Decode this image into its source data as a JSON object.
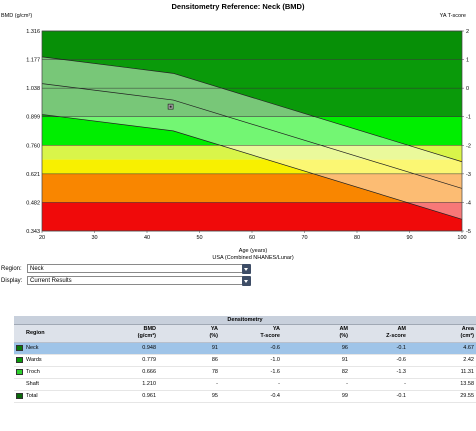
{
  "chart_data": {
    "type": "area",
    "title": "Densitometry Reference: Neck (BMD)",
    "ylabel": "BMD (g/cm²)",
    "ylabel_right": "YA T-score",
    "xlabel": "Age (years)",
    "xlabel_sub": "USA (Combined NHANES/Lunar)",
    "x_ticks": [
      "20",
      "30",
      "40",
      "50",
      "60",
      "70",
      "80",
      "90",
      "100"
    ],
    "y_ticks": [
      "1.316",
      "1.177",
      "1.038",
      "0.899",
      "0.760",
      "0.621",
      "0.482",
      "0.343"
    ],
    "t_ticks": [
      "2",
      "1",
      "0",
      "-1",
      "-2",
      "-3",
      "-4",
      "-5"
    ],
    "xlim": [
      20,
      100
    ],
    "ylim": [
      0.343,
      1.316
    ],
    "tlim": [
      -5,
      2
    ],
    "bands": [
      {
        "from_t": 1,
        "to_t": 2,
        "color": "#078f07"
      },
      {
        "from_t": -1,
        "to_t": 1,
        "color": "#0a9a0a"
      },
      {
        "from_t": -2,
        "to_t": -1,
        "color": "#00ee00"
      },
      {
        "from_t": -2.5,
        "to_t": -2,
        "color": "#d9f54a"
      },
      {
        "from_t": -3,
        "to_t": -2.5,
        "color": "#f8f000"
      },
      {
        "from_t": -4,
        "to_t": -3,
        "color": "#f98600"
      },
      {
        "from_t": -5,
        "to_t": -4,
        "color": "#f00a0a"
      }
    ],
    "reference_mean": {
      "x": [
        20,
        45,
        100
      ],
      "y": [
        1.06,
        0.98,
        0.55
      ]
    },
    "reference_upper": {
      "x": [
        20,
        45,
        100
      ],
      "y": [
        1.19,
        1.11,
        0.68
      ]
    },
    "reference_lower": {
      "x": [
        20,
        45,
        100
      ],
      "y": [
        0.91,
        0.83,
        0.4
      ]
    },
    "patient_point": {
      "x": 44.5,
      "y": 0.948
    }
  },
  "controls": {
    "region_label": "Region:",
    "region_value": "Neck",
    "display_label": "Display:",
    "display_value": "Current Results"
  },
  "results": {
    "title": "Densitometry",
    "headers": [
      {
        "l1": "Region",
        "l2": ""
      },
      {
        "l1": "BMD",
        "l2": "(g/cm²)"
      },
      {
        "l1": "YA",
        "l2": "(%)"
      },
      {
        "l1": "YA",
        "l2": "T-score"
      },
      {
        "l1": "AM",
        "l2": "(%)"
      },
      {
        "l1": "AM",
        "l2": "Z-score"
      },
      {
        "l1": "Area",
        "l2": "(cm²)"
      }
    ],
    "rows": [
      {
        "region": "Neck",
        "bmd": "0.948",
        "ya_pct": "91",
        "ya_t": "-0.6",
        "am_pct": "96",
        "am_z": "-0.1",
        "area": "4.67",
        "swatch": "#0a7a0a",
        "selected": true
      },
      {
        "region": "Wards",
        "bmd": "0.779",
        "ya_pct": "86",
        "ya_t": "-1.0",
        "am_pct": "91",
        "am_z": "-0.6",
        "area": "2.42",
        "swatch": "#0a9a0a",
        "selected": false
      },
      {
        "region": "Troch",
        "bmd": "0.666",
        "ya_pct": "78",
        "ya_t": "-1.6",
        "am_pct": "82",
        "am_z": "-1.3",
        "area": "11.31",
        "swatch": "#2ed02e",
        "selected": false
      },
      {
        "region": "Shaft",
        "bmd": "1.210",
        "ya_pct": "-",
        "ya_t": "-",
        "am_pct": "-",
        "am_z": "-",
        "area": "13.58",
        "swatch": "",
        "selected": false
      },
      {
        "region": "Total",
        "bmd": "0.961",
        "ya_pct": "95",
        "ya_t": "-0.4",
        "am_pct": "99",
        "am_z": "-0.1",
        "area": "29.55",
        "swatch": "#0a6a0a",
        "selected": false
      }
    ]
  }
}
